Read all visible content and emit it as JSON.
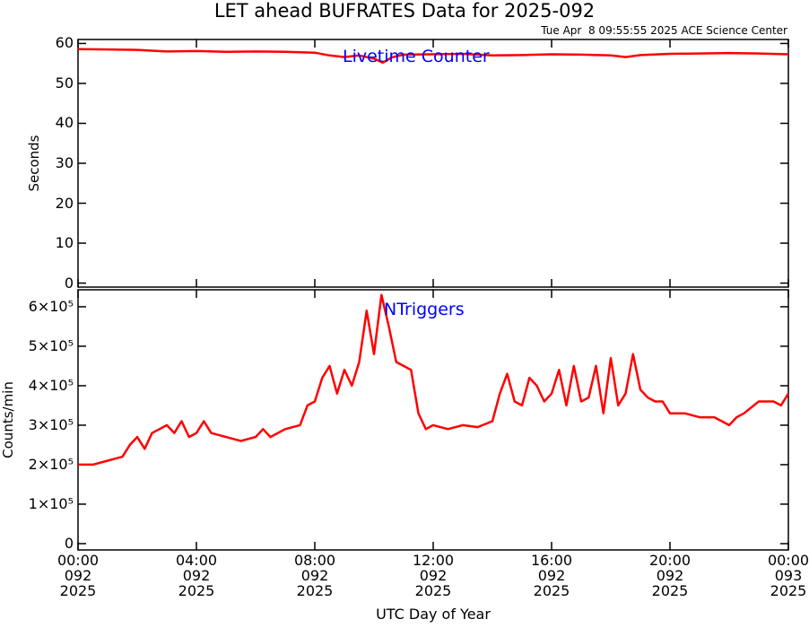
{
  "chart_data": [
    {
      "type": "line",
      "title": "LET ahead BUFRATES Data for 2025-092",
      "subtitle": "Tue Apr  8 09:55:55 2025 ACE Science Center",
      "annotation": "Livetime Counter",
      "ylabel": "Seconds",
      "color": "#ff0000",
      "xlim": [
        0,
        24
      ],
      "ylim": [
        -1,
        61
      ],
      "yticks": [
        0,
        10,
        20,
        30,
        40,
        50,
        60
      ],
      "x": [
        0,
        1,
        2,
        3,
        4,
        5,
        6,
        7,
        8,
        8.5,
        9,
        9.5,
        10,
        10.3,
        10.6,
        11,
        12,
        13,
        14,
        15,
        16,
        17,
        18,
        18.5,
        19,
        20,
        21,
        22,
        23,
        24
      ],
      "values": [
        58.6,
        58.5,
        58.4,
        58.0,
        58.1,
        57.9,
        58.0,
        57.9,
        57.7,
        57.0,
        56.6,
        57.0,
        56.2,
        55.2,
        56.5,
        57.2,
        57.3,
        57.4,
        57.0,
        57.1,
        57.3,
        57.2,
        57.0,
        56.6,
        57.1,
        57.4,
        57.5,
        57.6,
        57.5,
        57.3
      ]
    },
    {
      "type": "line",
      "annotation": "NTriggers",
      "ylabel": "Counts/min",
      "xlabel": "UTC Day of Year",
      "color": "#ff0000",
      "xlim": [
        0,
        24
      ],
      "ylim": [
        -16000,
        643000
      ],
      "xticks": [
        {
          "value": 0,
          "label": "00:00\n092\n2025"
        },
        {
          "value": 4,
          "label": "04:00\n092\n2025"
        },
        {
          "value": 8,
          "label": "08:00\n092\n2025"
        },
        {
          "value": 12,
          "label": "12:00\n092\n2025"
        },
        {
          "value": 16,
          "label": "16:00\n092\n2025"
        },
        {
          "value": 20,
          "label": "20:00\n092\n2025"
        },
        {
          "value": 24,
          "label": "00:00\n093\n2025"
        }
      ],
      "yticks": [
        0,
        {
          "value": 100000,
          "label": "1×10⁵"
        },
        {
          "value": 200000,
          "label": "2×10⁵"
        },
        {
          "value": 300000,
          "label": "3×10⁵"
        },
        {
          "value": 400000,
          "label": "4×10⁵"
        },
        {
          "value": 500000,
          "label": "5×10⁵"
        },
        {
          "value": 600000,
          "label": "6×10⁵"
        }
      ],
      "x": [
        0,
        0.5,
        1,
        1.5,
        1.75,
        2,
        2.25,
        2.5,
        2.75,
        3,
        3.25,
        3.5,
        3.75,
        4,
        4.25,
        4.5,
        5,
        5.5,
        6,
        6.25,
        6.5,
        7,
        7.5,
        7.75,
        8,
        8.25,
        8.5,
        8.75,
        9,
        9.25,
        9.5,
        9.75,
        10,
        10.25,
        10.5,
        10.75,
        11,
        11.25,
        11.5,
        11.75,
        12,
        12.5,
        13,
        13.5,
        14,
        14.25,
        14.5,
        14.75,
        15,
        15.25,
        15.5,
        15.75,
        16,
        16.25,
        16.5,
        16.75,
        17,
        17.25,
        17.5,
        17.75,
        18,
        18.25,
        18.5,
        18.75,
        19,
        19.25,
        19.5,
        19.75,
        20,
        20.5,
        21,
        21.5,
        22,
        22.25,
        22.5,
        23,
        23.25,
        23.5,
        23.75,
        24
      ],
      "values": [
        200000,
        200000,
        210000,
        220000,
        250000,
        270000,
        240000,
        280000,
        290000,
        300000,
        280000,
        310000,
        270000,
        280000,
        310000,
        280000,
        270000,
        260000,
        270000,
        290000,
        270000,
        290000,
        300000,
        350000,
        360000,
        420000,
        450000,
        380000,
        440000,
        400000,
        460000,
        590000,
        480000,
        630000,
        550000,
        460000,
        450000,
        440000,
        330000,
        290000,
        300000,
        290000,
        300000,
        295000,
        310000,
        380000,
        430000,
        360000,
        350000,
        420000,
        400000,
        360000,
        380000,
        440000,
        350000,
        450000,
        360000,
        370000,
        450000,
        330000,
        470000,
        350000,
        380000,
        480000,
        390000,
        370000,
        360000,
        360000,
        330000,
        330000,
        320000,
        320000,
        300000,
        320000,
        330000,
        360000,
        360000,
        360000,
        350000,
        380000
      ]
    }
  ]
}
